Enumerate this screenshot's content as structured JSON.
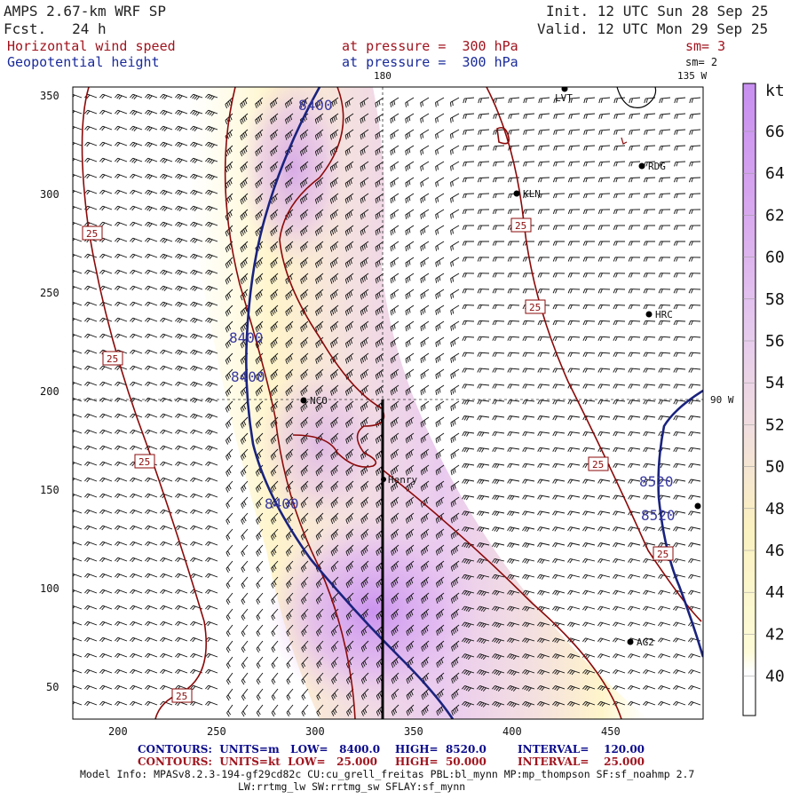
{
  "header": {
    "model": "AMPS 2.67-km WRF SP",
    "forecast": "Fcst.   24 h",
    "init": "Init. 12 UTC Sun 28 Sep 25",
    "valid": "Valid. 12 UTC Mon 29 Sep 25",
    "field1": "Horizontal wind speed",
    "field2": "Geopotential height",
    "level1": "at pressure =  300 hPa",
    "level2": "at pressure =  300 hPa",
    "sm1": "sm= 3",
    "sm2": "sm= 2"
  },
  "grid_labels": {
    "top_lon": "180",
    "top_right_lon": "135 W",
    "right_lon": "90 W"
  },
  "axes": {
    "x_ticks": [
      "200",
      "250",
      "300",
      "350",
      "400",
      "450"
    ],
    "y_ticks": [
      "50",
      "100",
      "150",
      "200",
      "250",
      "300",
      "350"
    ]
  },
  "colorbar": {
    "unit": "kt",
    "labels": [
      "66",
      "64",
      "62",
      "60",
      "58",
      "56",
      "54",
      "52",
      "50",
      "48",
      "46",
      "44",
      "42",
      "40"
    ],
    "low_color": "#fffbd6",
    "high_color": "#c88ff0"
  },
  "stations": [
    {
      "name": "LVT"
    },
    {
      "name": "RDG"
    },
    {
      "name": "KLN"
    },
    {
      "name": "HRC"
    },
    {
      "name": "NCO"
    },
    {
      "name": "Henry"
    },
    {
      "name": "AG2"
    }
  ],
  "height_contours": {
    "color": "#1a237e",
    "labels": [
      "8400",
      "8400",
      "8400",
      "8400",
      "8520",
      "8520"
    ]
  },
  "speed_contours": {
    "color": "#8b0a0a",
    "labels": [
      "25",
      "25",
      "25",
      "25",
      "25",
      "25",
      "25",
      "25"
    ]
  },
  "footer": {
    "row1_a": "CONTOURS:  UNITS=m   LOW=   8400.0",
    "row1_b": "HIGH=  8520.0",
    "row1_c": "INTERVAL=    120.00",
    "row2_a": "CONTOURS:  UNITS=kt  LOW=   25.000",
    "row2_b": "HIGH=  50.000",
    "row2_c": "INTERVAL=    25.000",
    "row1_color": "#0a0a8c",
    "row2_color": "#a0141e",
    "model_info": "Model Info: MPASv8.2.3-194-gf29cd82c CU:cu_grell_freitas PBL:bl_mynn MP:mp_thompson SF:sf_noahmp 2.7",
    "model_info2": "LW:rrtmg_lw SW:rrtmg_sw SFLAY:sf_mynn"
  }
}
